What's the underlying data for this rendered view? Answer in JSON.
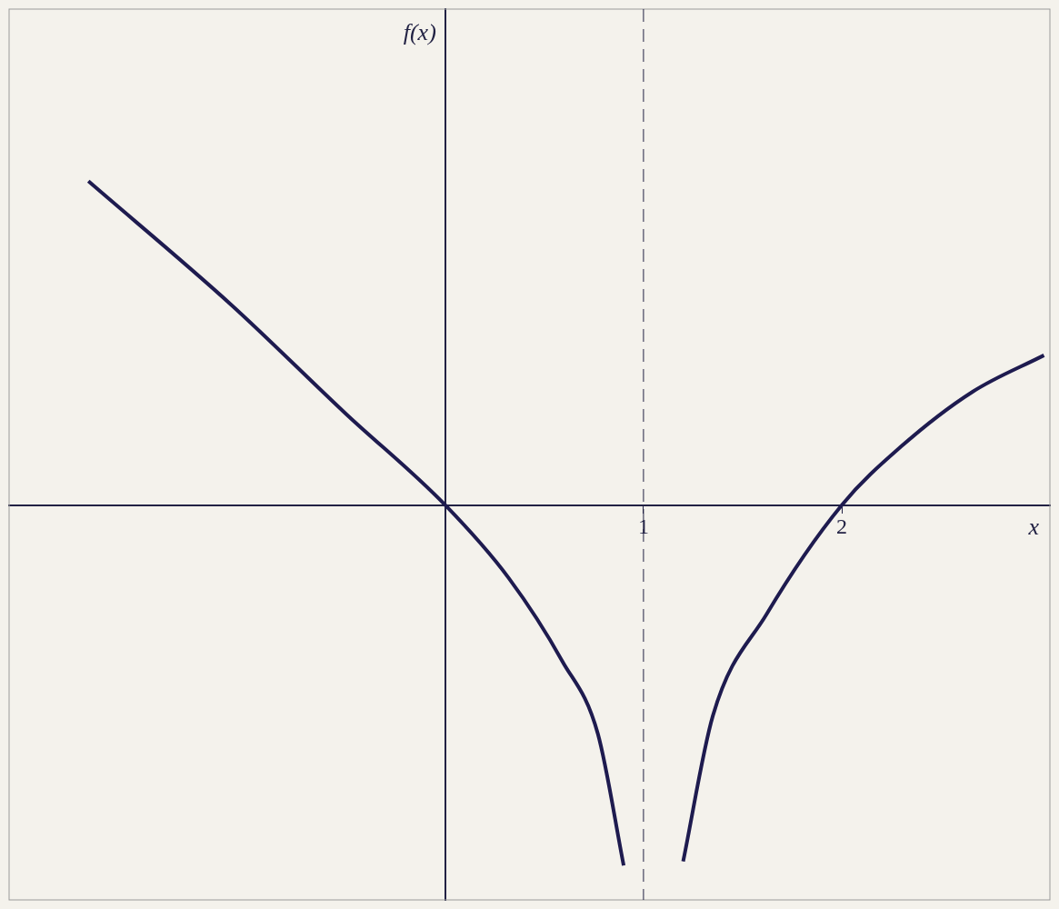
{
  "chart_data": {
    "type": "line",
    "x_label": "x",
    "y_label": "f(x)",
    "x": [
      -1.8,
      -1.08,
      -0.5,
      0,
      0.32,
      0.59,
      0.77,
      0.9,
      1,
      1.2,
      1.35,
      1.62,
      2,
      2.3,
      2.66,
      3.02
    ],
    "values": [
      1.6,
      0.99,
      0.45,
      0,
      -0.36,
      -0.77,
      -1.13,
      -1.78,
      null,
      -1.76,
      -1.04,
      -0.54,
      0,
      0.29,
      0.56,
      0.74
    ],
    "color": "#1e1b4f",
    "line_style": "solid",
    "xlim": [
      -2.2,
      3.05
    ],
    "ylim": [
      -1.95,
      2.45
    ],
    "xticks": [
      1,
      2
    ],
    "tick_labels": "x",
    "grid": false,
    "asymptote_x": 1
  }
}
